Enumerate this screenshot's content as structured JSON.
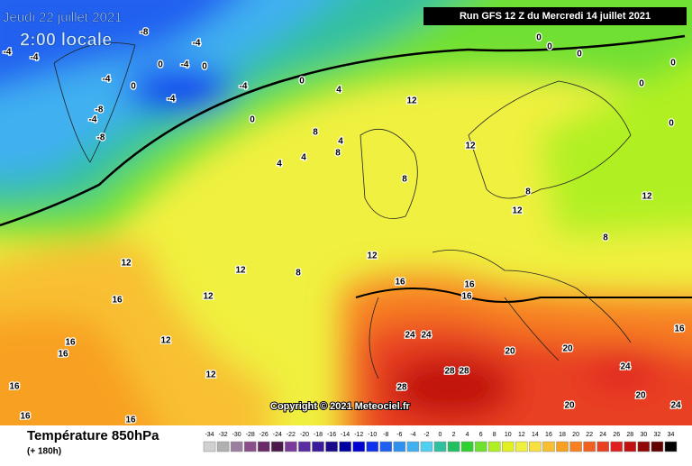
{
  "header": {
    "date": "Jeudi 22 juillet 2021",
    "time": "2:00 locale",
    "run": "Run GFS 12 Z du Mercredi 14 juillet 2021"
  },
  "copyright": "Copyright © 2021 Meteociel.fr",
  "legend": {
    "title": "Température 850hPa",
    "subtitle": "(+ 180h)",
    "ticks": [
      -34,
      -32,
      -30,
      -28,
      -26,
      -24,
      -22,
      -20,
      -18,
      -16,
      -14,
      -12,
      -10,
      -8,
      -6,
      -4,
      -2,
      0,
      2,
      4,
      6,
      8,
      10,
      12,
      14,
      16,
      18,
      20,
      22,
      24,
      26,
      28,
      30,
      32,
      34
    ],
    "colors": [
      "#d0d0d0",
      "#b0b0b0",
      "#9a7fa0",
      "#8a4f8a",
      "#6a2a6a",
      "#4b1a4b",
      "#7a3a9a",
      "#5a2aa0",
      "#3a1a9a",
      "#1a0a8a",
      "#0000a0",
      "#0000d0",
      "#1030f0",
      "#2060f0",
      "#3090f0",
      "#40b0f0",
      "#50d0f0",
      "#30c0a0",
      "#20c060",
      "#30d030",
      "#70e030",
      "#b0f020",
      "#e0f020",
      "#f0f040",
      "#f8e040",
      "#f8c030",
      "#f8a020",
      "#f88020",
      "#f06020",
      "#e84020",
      "#e02020",
      "#c01010",
      "#900808",
      "#600000",
      "#000000"
    ]
  },
  "map_labels": [
    "-8",
    "-4",
    "-4",
    "-4",
    "0",
    "-4",
    "0",
    "-4",
    "0",
    "-4",
    "-4",
    "0",
    "4",
    "12",
    "-8",
    "-4",
    "-8",
    "0",
    "8",
    "4",
    "12",
    "8",
    "4",
    "4",
    "8",
    "8",
    "12",
    "12",
    "12",
    "12",
    "8",
    "12",
    "8",
    "16",
    "12",
    "16",
    "16",
    "16",
    "24",
    "24",
    "16",
    "12",
    "16",
    "20",
    "20",
    "16",
    "28",
    "28",
    "24",
    "28",
    "12",
    "16",
    "20",
    "20",
    "24",
    "16",
    "16",
    "0",
    "0",
    "0",
    "0",
    "0",
    "0"
  ]
}
